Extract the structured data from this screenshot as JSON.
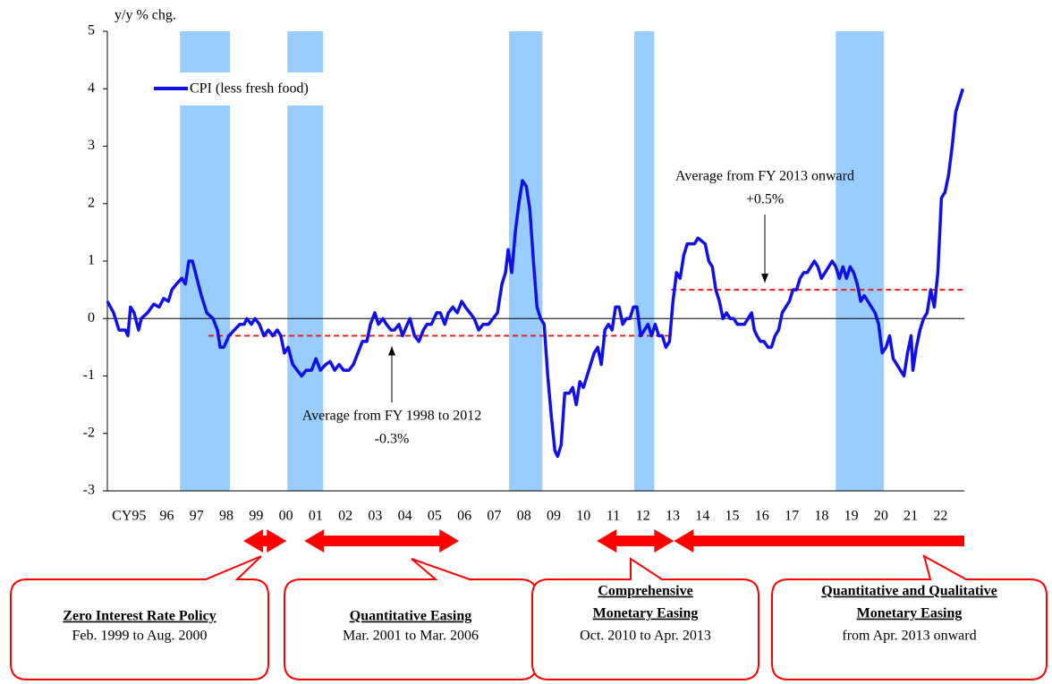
{
  "chart_data": {
    "type": "line",
    "y_label": "y/y % chg.",
    "xlim": [
      1994.5,
      2023.3
    ],
    "ylim": [
      -3,
      5
    ],
    "yticks": [
      -3,
      -2,
      -1,
      0,
      1,
      2,
      3,
      4,
      5
    ],
    "xticks": [
      {
        "value": 1995.5,
        "label": "CY95"
      },
      {
        "value": 1996.5,
        "label": "96"
      },
      {
        "value": 1997.5,
        "label": "97"
      },
      {
        "value": 1998.5,
        "label": "98"
      },
      {
        "value": 1999.5,
        "label": "99"
      },
      {
        "value": 2000.5,
        "label": "00"
      },
      {
        "value": 2001.5,
        "label": "01"
      },
      {
        "value": 2002.5,
        "label": "02"
      },
      {
        "value": 2003.5,
        "label": "03"
      },
      {
        "value": 2004.5,
        "label": "04"
      },
      {
        "value": 2005.5,
        "label": "05"
      },
      {
        "value": 2006.5,
        "label": "06"
      },
      {
        "value": 2007.5,
        "label": "07"
      },
      {
        "value": 2008.5,
        "label": "08"
      },
      {
        "value": 2009.5,
        "label": "09"
      },
      {
        "value": 2010.5,
        "label": "10"
      },
      {
        "value": 2011.5,
        "label": "11"
      },
      {
        "value": 2012.5,
        "label": "12"
      },
      {
        "value": 2013.5,
        "label": "13"
      },
      {
        "value": 2014.5,
        "label": "14"
      },
      {
        "value": 2015.5,
        "label": "15"
      },
      {
        "value": 2016.5,
        "label": "16"
      },
      {
        "value": 2017.5,
        "label": "17"
      },
      {
        "value": 2018.5,
        "label": "18"
      },
      {
        "value": 2019.5,
        "label": "19"
      },
      {
        "value": 2020.5,
        "label": "20"
      },
      {
        "value": 2021.5,
        "label": "21"
      },
      {
        "value": 2022.5,
        "label": "22"
      }
    ],
    "legend": "upper left",
    "series": [
      {
        "name": "CPI (less fresh food)",
        "color": "#1010e8",
        "x": [
          1994.5,
          1994.71,
          1994.89,
          1995.1,
          1995.19,
          1995.28,
          1995.4,
          1995.55,
          1995.64,
          1995.85,
          1996.06,
          1996.24,
          1996.39,
          1996.55,
          1996.67,
          1996.82,
          1997.0,
          1997.12,
          1997.24,
          1997.36,
          1997.51,
          1997.66,
          1997.84,
          1998.05,
          1998.2,
          1998.29,
          1998.41,
          1998.59,
          1998.77,
          1998.95,
          1999.1,
          1999.19,
          1999.34,
          1999.46,
          1999.61,
          1999.76,
          1999.91,
          2000.06,
          2000.21,
          2000.33,
          2000.45,
          2000.58,
          2000.73,
          2000.88,
          2001.03,
          2001.18,
          2001.36,
          2001.51,
          2001.66,
          2001.84,
          2001.99,
          2002.14,
          2002.29,
          2002.44,
          2002.62,
          2002.77,
          2002.92,
          2003.07,
          2003.22,
          2003.34,
          2003.49,
          2003.61,
          2003.76,
          2003.88,
          2004.03,
          2004.15,
          2004.3,
          2004.42,
          2004.58,
          2004.67,
          2004.82,
          2004.97,
          2005.12,
          2005.24,
          2005.39,
          2005.57,
          2005.69,
          2005.84,
          2005.96,
          2006.11,
          2006.26,
          2006.41,
          2006.53,
          2006.68,
          2006.83,
          2006.98,
          2007.13,
          2007.31,
          2007.46,
          2007.61,
          2007.76,
          2007.88,
          2007.97,
          2008.09,
          2008.21,
          2008.33,
          2008.45,
          2008.58,
          2008.7,
          2008.82,
          2008.94,
          2009.06,
          2009.18,
          2009.3,
          2009.42,
          2009.54,
          2009.63,
          2009.75,
          2009.87,
          2010.02,
          2010.14,
          2010.26,
          2010.38,
          2010.5,
          2010.62,
          2010.74,
          2010.86,
          2010.98,
          2011.1,
          2011.22,
          2011.34,
          2011.46,
          2011.58,
          2011.7,
          2011.82,
          2011.94,
          2012.06,
          2012.18,
          2012.3,
          2012.42,
          2012.55,
          2012.67,
          2012.79,
          2012.91,
          2013.03,
          2013.15,
          2013.27,
          2013.39,
          2013.51,
          2013.63,
          2013.75,
          2013.87,
          2013.99,
          2014.11,
          2014.23,
          2014.35,
          2014.47,
          2014.59,
          2014.71,
          2014.83,
          2014.95,
          2015.07,
          2015.19,
          2015.31,
          2015.43,
          2015.55,
          2015.67,
          2015.79,
          2015.91,
          2016.03,
          2016.15,
          2016.24,
          2016.33,
          2016.45,
          2016.57,
          2016.7,
          2016.82,
          2016.94,
          2017.06,
          2017.18,
          2017.3,
          2017.42,
          2017.54,
          2017.66,
          2017.78,
          2017.9,
          2018.02,
          2018.14,
          2018.26,
          2018.38,
          2018.5,
          2018.62,
          2018.74,
          2018.86,
          2018.98,
          2019.1,
          2019.22,
          2019.34,
          2019.46,
          2019.58,
          2019.7,
          2019.82,
          2019.94,
          2020.06,
          2020.18,
          2020.3,
          2020.42,
          2020.54,
          2020.67,
          2020.79,
          2020.91,
          2021.03,
          2021.15,
          2021.27,
          2021.39,
          2021.51,
          2021.57,
          2021.69,
          2021.81,
          2021.93,
          2022.05,
          2022.17,
          2022.29,
          2022.41,
          2022.53,
          2022.65,
          2022.77,
          2022.89,
          2023.01,
          2023.13,
          2023.25
        ],
        "values": [
          0.3,
          0.1,
          -0.2,
          -0.2,
          -0.3,
          0.2,
          0.1,
          -0.2,
          0.0,
          0.1,
          0.25,
          0.2,
          0.35,
          0.3,
          0.5,
          0.6,
          0.7,
          0.6,
          1.0,
          1.0,
          0.7,
          0.4,
          0.1,
          0.0,
          -0.2,
          -0.5,
          -0.5,
          -0.3,
          -0.2,
          -0.1,
          -0.1,
          0.0,
          -0.1,
          0.0,
          -0.1,
          -0.3,
          -0.2,
          -0.3,
          -0.2,
          -0.3,
          -0.6,
          -0.5,
          -0.8,
          -0.9,
          -1.0,
          -0.9,
          -0.9,
          -0.7,
          -0.9,
          -0.8,
          -0.75,
          -0.9,
          -0.8,
          -0.9,
          -0.9,
          -0.8,
          -0.6,
          -0.4,
          -0.4,
          -0.1,
          0.1,
          -0.1,
          0.0,
          -0.1,
          -0.2,
          -0.2,
          -0.1,
          -0.3,
          -0.1,
          0.0,
          -0.3,
          -0.4,
          -0.2,
          -0.1,
          -0.1,
          0.1,
          0.1,
          -0.1,
          0.1,
          0.2,
          0.1,
          0.3,
          0.2,
          0.1,
          0.0,
          -0.2,
          -0.1,
          -0.1,
          0.0,
          0.1,
          0.6,
          0.8,
          1.2,
          0.8,
          1.5,
          2.0,
          2.4,
          2.3,
          1.9,
          1.0,
          0.2,
          0.0,
          -0.1,
          -1.0,
          -1.7,
          -2.3,
          -2.4,
          -2.2,
          -1.3,
          -1.3,
          -1.2,
          -1.5,
          -1.1,
          -1.2,
          -1.0,
          -0.8,
          -0.6,
          -0.5,
          -0.8,
          -0.2,
          -0.1,
          -0.2,
          0.2,
          0.2,
          -0.1,
          0.0,
          0.0,
          0.2,
          0.2,
          -0.3,
          -0.2,
          -0.1,
          -0.3,
          -0.1,
          -0.3,
          -0.3,
          -0.5,
          -0.4,
          0.3,
          0.8,
          0.7,
          1.1,
          1.3,
          1.3,
          1.3,
          1.4,
          1.35,
          1.3,
          1.0,
          0.9,
          0.5,
          0.3,
          0.0,
          0.1,
          0.0,
          0.0,
          -0.1,
          -0.1,
          -0.1,
          0.0,
          0.1,
          -0.2,
          -0.3,
          -0.4,
          -0.4,
          -0.5,
          -0.5,
          -0.3,
          -0.2,
          0.1,
          0.2,
          0.3,
          0.5,
          0.5,
          0.7,
          0.8,
          0.8,
          0.9,
          1.0,
          0.9,
          0.7,
          0.8,
          0.9,
          1.0,
          0.9,
          0.7,
          0.9,
          0.7,
          0.9,
          0.8,
          0.6,
          0.3,
          0.4,
          0.3,
          0.2,
          0.1,
          -0.1,
          -0.6,
          -0.5,
          -0.3,
          -0.7,
          -0.8,
          -0.9,
          -1.0,
          -0.6,
          -0.3,
          -0.9,
          -0.5,
          -0.2,
          0.0,
          0.1,
          0.5,
          0.2,
          0.8,
          2.1,
          2.2,
          2.5,
          3.0,
          3.6,
          3.8,
          4.0
        ]
      }
    ],
    "shade_color": "#99ccff",
    "shaded_periods": [
      {
        "start": 1996.94,
        "end": 1998.62
      },
      {
        "start": 2000.55,
        "end": 2001.75
      },
      {
        "start": 2008.0,
        "end": 2009.12
      },
      {
        "start": 2012.21,
        "end": 2012.88
      },
      {
        "start": 2018.98,
        "end": 2020.6
      }
    ],
    "reference_lines": [
      {
        "value": -0.3,
        "start": 1997.9,
        "end": 2013.45,
        "color": "#e82020",
        "label": [
          "Average  from FY 1998 to 2012",
          "-0.3%"
        ]
      },
      {
        "value": 0.5,
        "start": 2013.45,
        "end": 2023.3,
        "color": "#e82020",
        "label": [
          "Average  from FY 2013 onward",
          "+0.5%"
        ]
      }
    ],
    "policy_color": "#ff0000",
    "policies": [
      {
        "title": [
          "Zero Interest Rate Policy"
        ],
        "period": "Feb. 1999 to Aug.  2000",
        "start": 1999.07,
        "end": 2000.52,
        "arrow": "both"
      },
      {
        "title": [
          "Quantitative  Easing"
        ],
        "period": "Mar. 2001 to Mar. 2006",
        "start": 2001.12,
        "end": 2006.32,
        "arrow": "both"
      },
      {
        "title": [
          "Comprehensive",
          "Monetary Easing"
        ],
        "period": "Oct. 2010 to Apr. 2013",
        "start": 2010.95,
        "end": 2013.54,
        "arrow": "both"
      },
      {
        "title": [
          "Quantitative  and Qualitative",
          "Monetary Easing"
        ],
        "period": "from Apr. 2013 onward",
        "start": 2013.54,
        "end": 2023.3,
        "arrow": "start"
      }
    ]
  }
}
